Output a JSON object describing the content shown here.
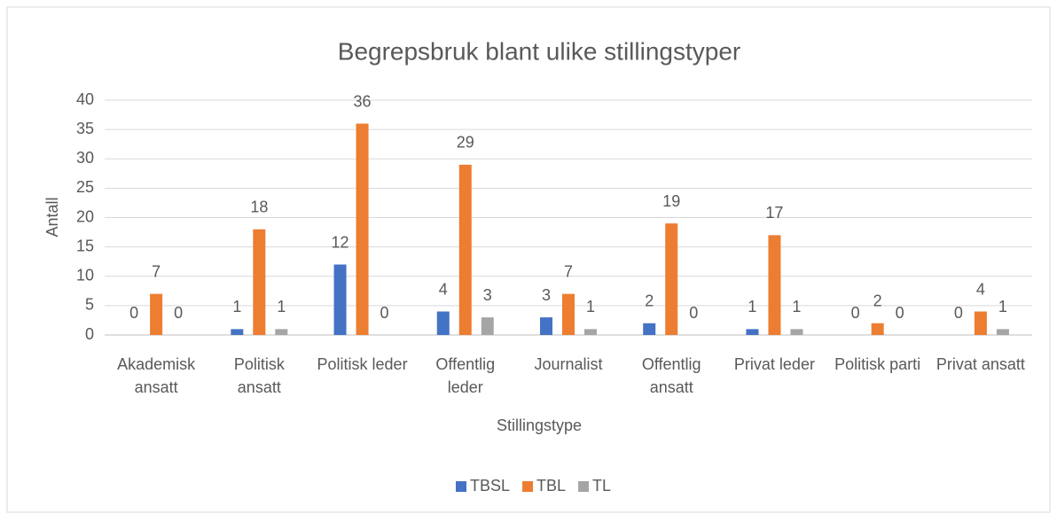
{
  "chart_data": {
    "type": "bar",
    "title": "Begrepsbruk blant ulike stillingstyper",
    "x_label": "Stillingstype",
    "y_label": "Antall",
    "categories": [
      "Akademisk ansatt",
      "Politisk ansatt",
      "Politisk leder",
      "Offentlig leder",
      "Journalist",
      "Offentlig ansatt",
      "Privat leder",
      "Politisk parti",
      "Privat ansatt"
    ],
    "series": [
      {
        "name": "TBSL",
        "color": "#4472c4",
        "values": [
          0,
          1,
          12,
          4,
          3,
          2,
          1,
          0,
          0
        ]
      },
      {
        "name": "TBL",
        "color": "#ed7d31",
        "values": [
          7,
          18,
          36,
          29,
          7,
          19,
          17,
          2,
          4
        ]
      },
      {
        "name": "TL",
        "color": "#a5a5a5",
        "values": [
          0,
          1,
          0,
          3,
          1,
          0,
          1,
          0,
          1
        ]
      }
    ],
    "ylim": [
      0,
      40
    ],
    "yticks": [
      0,
      5,
      10,
      15,
      20,
      25,
      30,
      35,
      40
    ],
    "grid": true,
    "legend": "bottom"
  }
}
